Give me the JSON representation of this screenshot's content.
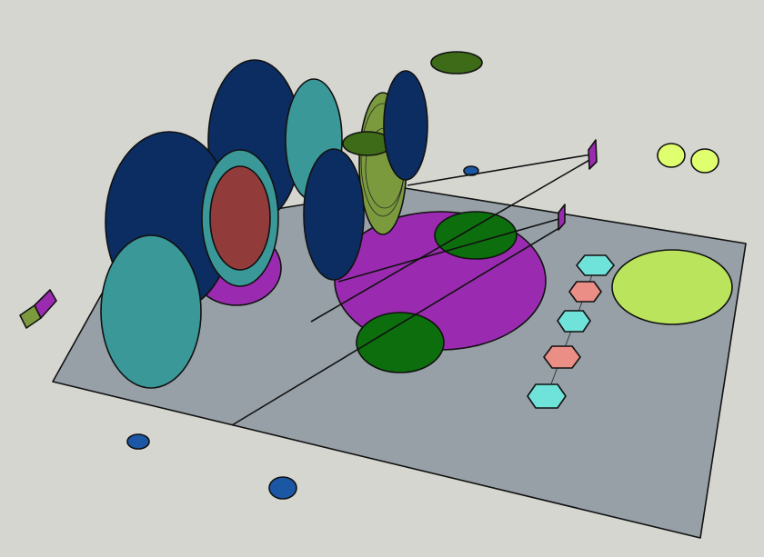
{
  "scene": {
    "kind": "3d-model-viewport",
    "colors": {
      "background": "#d6d6d1",
      "floor": "#97a0a6",
      "navy": "#0c2d61",
      "teal": "#3b9898",
      "brick": "#923b3b",
      "magenta": "#9a2bb0",
      "green": "#0d6e0d",
      "olive": "#7b9a3e",
      "dark_olive": "#3d6b17",
      "lime": "#b9e45c",
      "pale_lime": "#dfff6e",
      "cyan": "#6fe2d9",
      "salmon": "#eb8f86",
      "blue": "#1c57a6"
    },
    "objects": [
      "floor-plane",
      "navy-disc-cluster",
      "teal-ring-disc",
      "magenta-ellipse",
      "green-ellipses",
      "olive-disc-stack",
      "lime-ellipse",
      "hexagon-chain",
      "blue-ovals",
      "magenta-flags"
    ]
  }
}
